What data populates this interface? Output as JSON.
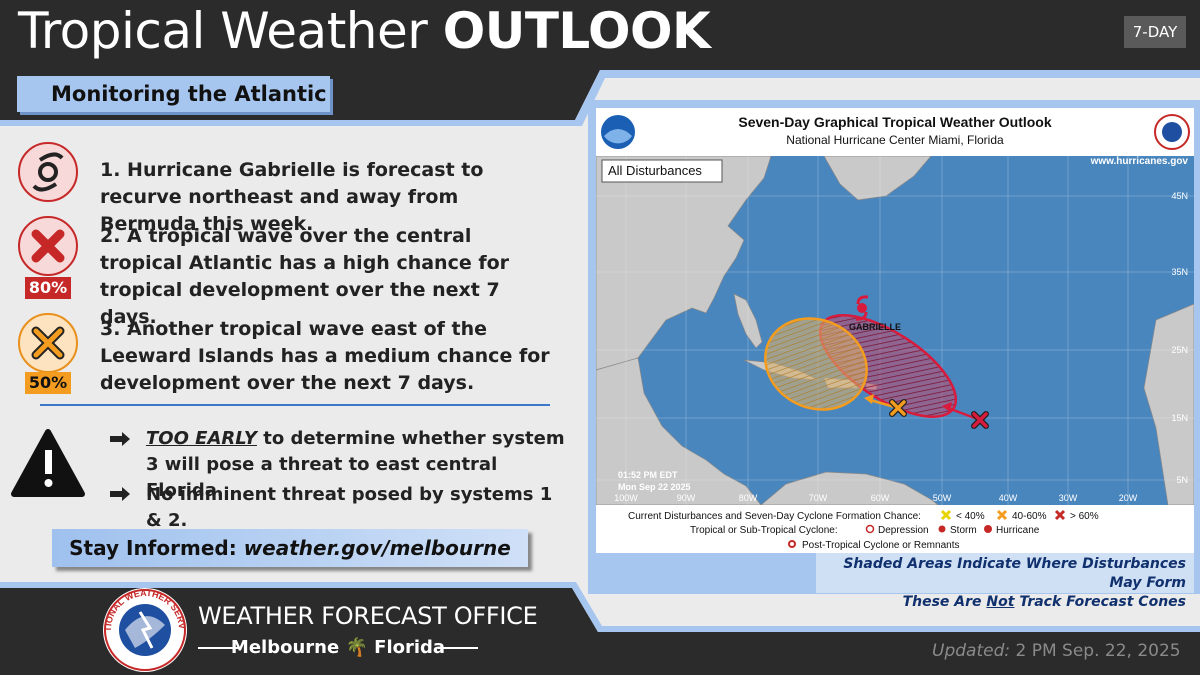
{
  "header": {
    "title_light": "Tropical Weather",
    "title_bold": "OUTLOOK",
    "badge": "7-DAY",
    "subtitle": "Monitoring the Atlantic"
  },
  "items": [
    {
      "text": "1. Hurricane Gabrielle is forecast to recurve northeast and away from Bermuda this week."
    },
    {
      "text": "2. A tropical wave over the central tropical Atlantic has a high chance for tropical development over the next 7 days.",
      "badge": "80%"
    },
    {
      "text": "3. Another tropical wave east of the Leeward Islands has a medium chance for development over the next 7 days.",
      "badge": "50%"
    }
  ],
  "bullets": [
    {
      "emphasis": "TOO EARLY",
      "text": "to determine whether system 3 will pose a threat to east central Florida."
    },
    {
      "text": "No imminent threat posed by systems 1 & 2."
    }
  ],
  "stay_informed": {
    "label": "Stay Informed:",
    "link": "weather.gov/melbourne"
  },
  "map": {
    "title": "Seven-Day Graphical Tropical Weather Outlook",
    "subtitle": "National Hurricane Center  Miami, Florida",
    "url": "www.hurricanes.gov",
    "filter": "All Disturbances",
    "storm": "GABRIELLE",
    "timestamp": [
      "01:52 PM EDT",
      "Mon Sep 22 2025"
    ],
    "lon_labels": [
      "100W",
      "90W",
      "80W",
      "70W",
      "60W",
      "50W",
      "40W",
      "30W",
      "20W"
    ],
    "lat_labels": [
      "45N",
      "35N",
      "25N",
      "15N",
      "5N"
    ],
    "legend": {
      "formation": "Current Disturbances and Seven-Day Cyclone Formation Chance:",
      "low": "< 40%",
      "medium": "40-60%",
      "high": "> 60%",
      "cyclone": "Tropical or Sub-Tropical Cyclone:",
      "depression": "Depression",
      "storm": "Storm",
      "hurricane": "Hurricane",
      "post": "Post-Tropical Cyclone or Remnants"
    }
  },
  "caption": {
    "line1": "Shaded Areas Indicate Where Disturbances May Form",
    "line2_start": "These Are",
    "line2_emphasis": "Not",
    "line2_end": "Track Forecast Cones"
  },
  "footer": {
    "logo": "NATIONAL WEATHER SERVICE",
    "office": "WEATHER FORECAST OFFICE",
    "city": "Melbourne",
    "state": "Florida",
    "updated_label": "Updated:",
    "updated": "2 PM Sep. 22, 2025"
  }
}
